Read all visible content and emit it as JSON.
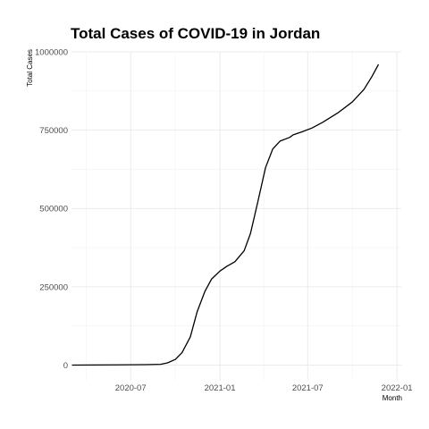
{
  "chart_data": {
    "type": "line",
    "title": "Total Cases of COVID-19 in Jordan",
    "xlabel": "Month",
    "ylabel": "Total Cases",
    "x_axis_type": "date",
    "xlim": [
      "2020-03-01",
      "2022-01-10"
    ],
    "ylim": [
      -50000,
      1000000
    ],
    "x_ticks": [
      "2020-07-01",
      "2021-01-01",
      "2021-07-01",
      "2022-01-01"
    ],
    "x_tick_labels": [
      "2020-07",
      "2021-01",
      "2021-07",
      "2022-01"
    ],
    "y_ticks": [
      0,
      250000,
      500000,
      750000,
      1000000
    ],
    "y_tick_labels": [
      "0",
      "250000",
      "500000",
      "750000",
      "1000000"
    ],
    "grid": true,
    "legend": "none",
    "series": [
      {
        "color": "#000000",
        "points": [
          {
            "x": "2020-03-02",
            "y": 0
          },
          {
            "x": "2020-06-01",
            "y": 700
          },
          {
            "x": "2020-08-01",
            "y": 1300
          },
          {
            "x": "2020-09-01",
            "y": 2500
          },
          {
            "x": "2020-09-15",
            "y": 7000
          },
          {
            "x": "2020-10-01",
            "y": 18000
          },
          {
            "x": "2020-10-15",
            "y": 40000
          },
          {
            "x": "2020-11-01",
            "y": 90000
          },
          {
            "x": "2020-11-15",
            "y": 170000
          },
          {
            "x": "2020-12-01",
            "y": 235000
          },
          {
            "x": "2020-12-15",
            "y": 275000
          },
          {
            "x": "2021-01-01",
            "y": 300000
          },
          {
            "x": "2021-01-15",
            "y": 315000
          },
          {
            "x": "2021-02-01",
            "y": 330000
          },
          {
            "x": "2021-02-20",
            "y": 365000
          },
          {
            "x": "2021-03-05",
            "y": 420000
          },
          {
            "x": "2021-03-20",
            "y": 520000
          },
          {
            "x": "2021-04-05",
            "y": 630000
          },
          {
            "x": "2021-04-20",
            "y": 690000
          },
          {
            "x": "2021-05-05",
            "y": 715000
          },
          {
            "x": "2021-05-25",
            "y": 727000
          },
          {
            "x": "2021-06-01",
            "y": 735000
          },
          {
            "x": "2021-06-20",
            "y": 745000
          },
          {
            "x": "2021-07-10",
            "y": 757000
          },
          {
            "x": "2021-08-01",
            "y": 775000
          },
          {
            "x": "2021-09-01",
            "y": 805000
          },
          {
            "x": "2021-10-01",
            "y": 840000
          },
          {
            "x": "2021-10-25",
            "y": 880000
          },
          {
            "x": "2021-11-10",
            "y": 920000
          },
          {
            "x": "2021-11-24",
            "y": 960000
          }
        ]
      }
    ]
  }
}
